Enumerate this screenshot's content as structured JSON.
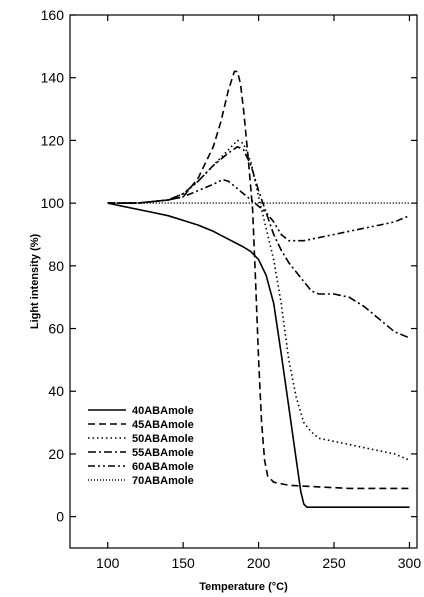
{
  "chart_data": {
    "type": "line",
    "title": "",
    "xlabel": "Temperature (°C)",
    "ylabel": "Light intensity (%)",
    "xlim": [
      75,
      305
    ],
    "ylim": [
      -10,
      160
    ],
    "xticks": [
      100,
      150,
      200,
      250,
      300
    ],
    "yticks": [
      0,
      20,
      40,
      60,
      80,
      100,
      120,
      140,
      160
    ],
    "grid": false,
    "legend": "bottom-left",
    "series": [
      {
        "name": "40ABAmole",
        "dash": "solid",
        "x": [
          100,
          110,
          120,
          130,
          140,
          150,
          160,
          170,
          180,
          190,
          195,
          200,
          205,
          210,
          215,
          220,
          225,
          228,
          230,
          232,
          240,
          260,
          280,
          300
        ],
        "y": [
          100,
          99,
          98,
          97,
          96,
          94.5,
          93,
          91,
          88.5,
          86,
          84.5,
          82,
          77,
          68,
          52,
          35,
          18,
          8,
          4,
          3,
          3,
          3,
          3,
          3
        ]
      },
      {
        "name": "45ABAmole",
        "dash": "dashed",
        "x": [
          100,
          120,
          140,
          150,
          160,
          170,
          175,
          180,
          184,
          186,
          188,
          190,
          193,
          196,
          198,
          200,
          202,
          204,
          206,
          210,
          220,
          240,
          260,
          280,
          300
        ],
        "y": [
          100,
          100,
          101,
          102,
          108,
          118,
          126,
          136,
          142,
          142,
          138,
          130,
          115,
          98,
          75,
          50,
          30,
          18,
          13,
          11,
          10,
          9.5,
          9,
          9,
          9
        ]
      },
      {
        "name": "50ABAmole",
        "dash": "dotted",
        "x": [
          100,
          120,
          140,
          150,
          160,
          170,
          180,
          186,
          190,
          195,
          200,
          205,
          210,
          215,
          220,
          225,
          230,
          235,
          240,
          250,
          260,
          270,
          280,
          290,
          300
        ],
        "y": [
          100,
          100,
          101,
          103,
          107,
          112,
          117,
          120,
          119,
          113,
          102,
          92,
          82,
          68,
          50,
          38,
          30,
          27,
          25,
          24,
          23,
          22,
          21,
          20,
          18
        ]
      },
      {
        "name": "55ABAmole",
        "dash": "dashdot",
        "x": [
          100,
          120,
          140,
          150,
          160,
          170,
          180,
          186,
          190,
          195,
          200,
          205,
          210,
          215,
          220,
          225,
          230,
          235,
          240,
          250,
          260,
          270,
          280,
          290,
          300
        ],
        "y": [
          100,
          100,
          101,
          103,
          107,
          112,
          116,
          118,
          117,
          112,
          104,
          97,
          90,
          85,
          81,
          78,
          75,
          72,
          71,
          71,
          70,
          67,
          63,
          59,
          57
        ]
      },
      {
        "name": "60ABAmole",
        "dash": "dashdotdot",
        "x": [
          100,
          120,
          140,
          150,
          160,
          170,
          176,
          180,
          185,
          190,
          195,
          200,
          205,
          210,
          215,
          220,
          230,
          240,
          250,
          260,
          270,
          280,
          290,
          300
        ],
        "y": [
          100,
          100,
          101,
          102,
          104,
          106,
          107.5,
          107,
          105,
          103,
          101,
          99,
          97,
          94,
          90,
          88,
          88,
          89,
          90,
          91,
          92,
          93,
          94,
          96
        ]
      },
      {
        "name": "70ABAmole",
        "dash": "finedotted",
        "x": [
          100,
          150,
          200,
          250,
          300
        ],
        "y": [
          100,
          100,
          100,
          100,
          100
        ]
      }
    ]
  }
}
